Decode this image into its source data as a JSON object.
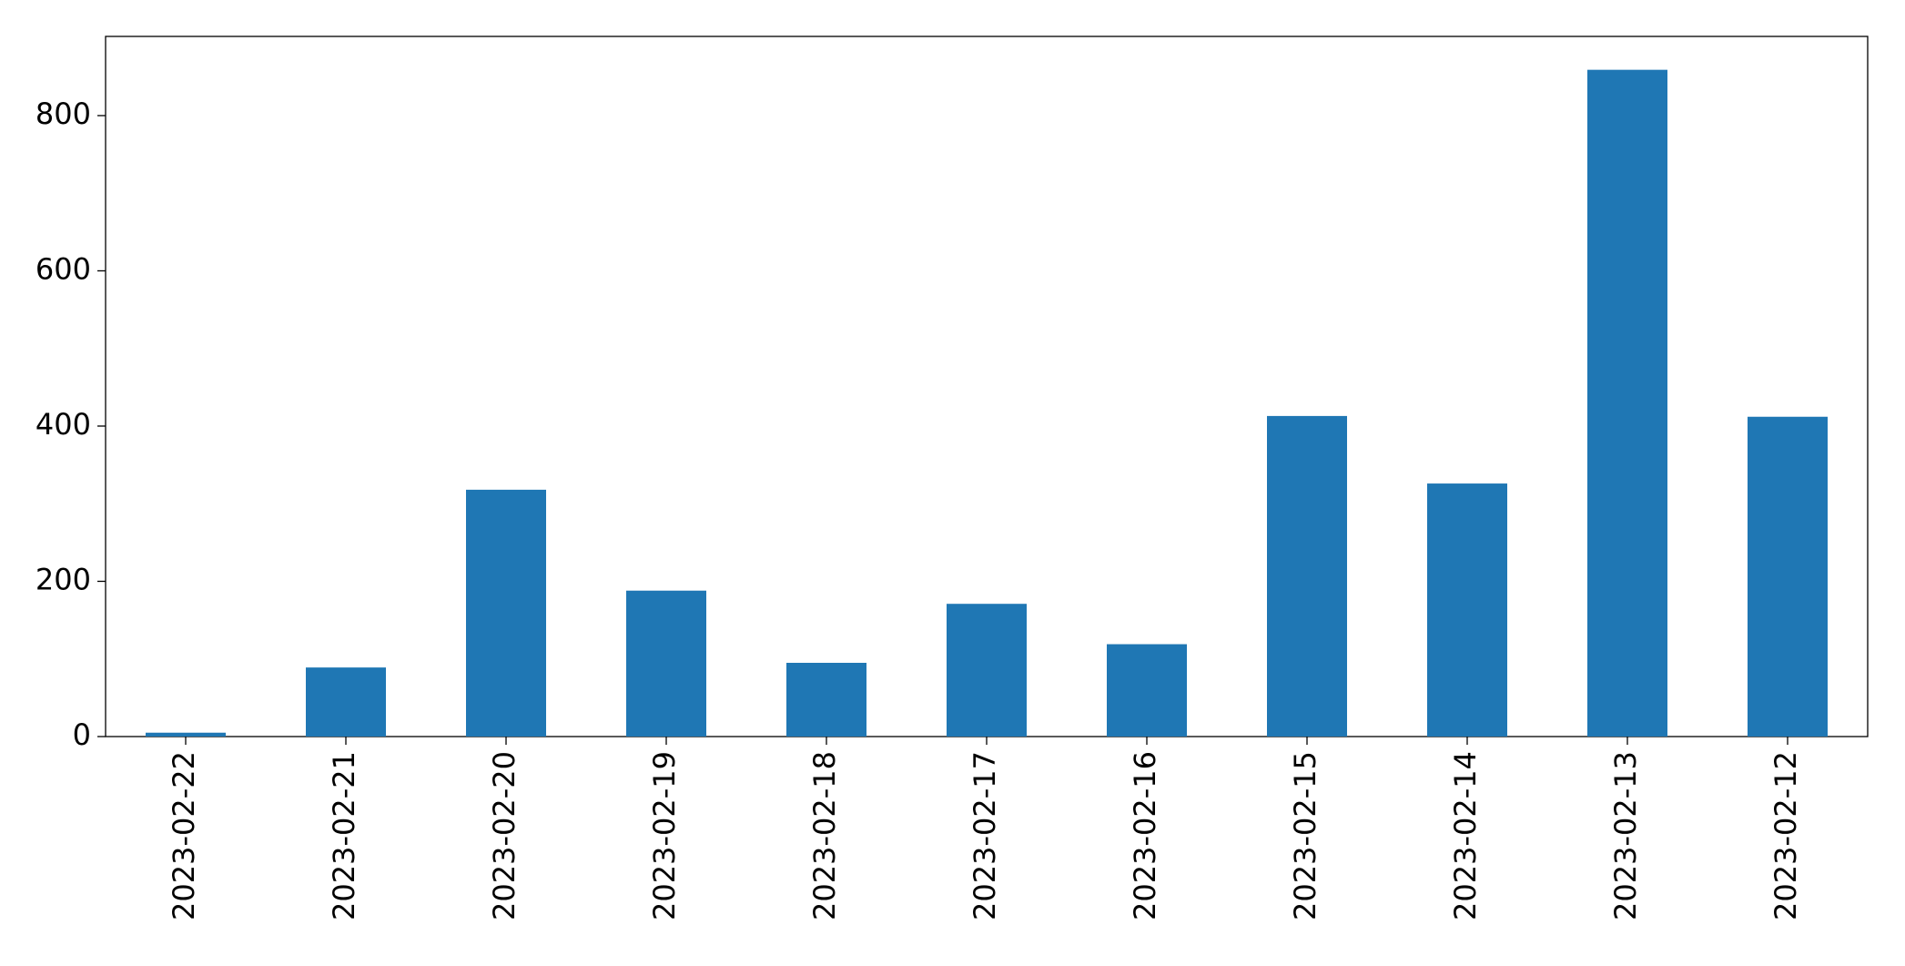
{
  "chart_data": {
    "type": "bar",
    "categories": [
      "2023-02-22",
      "2023-02-21",
      "2023-02-20",
      "2023-02-19",
      "2023-02-18",
      "2023-02-17",
      "2023-02-16",
      "2023-02-15",
      "2023-02-14",
      "2023-02-13",
      "2023-02-12"
    ],
    "values": [
      5,
      89,
      318,
      188,
      95,
      171,
      119,
      413,
      326,
      859,
      412
    ],
    "color": "#1f77b4",
    "ylim": [
      0,
      902
    ],
    "yticks": [
      0,
      200,
      400,
      600,
      800
    ],
    "grid": false
  }
}
